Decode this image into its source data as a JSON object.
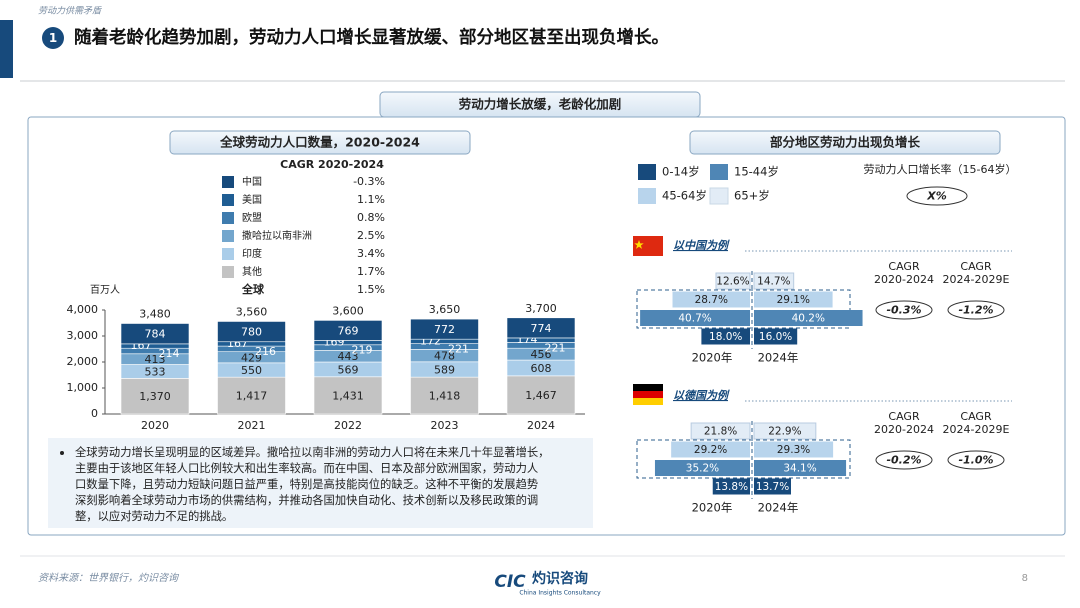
{
  "header": {
    "section": "劳动力供需矛盾",
    "number": "1",
    "title": "随着老龄化趋势加剧，劳动力人口增长显著放缓、部分地区甚至出现负增长。"
  },
  "banner": "劳动力增长放缓，老龄化加剧",
  "chart_data": {
    "type": "bar",
    "stacked": true,
    "title": "全球劳动力人口数量，2020-2024",
    "y_unit": "百万人",
    "categories": [
      "2020",
      "2021",
      "2022",
      "2023",
      "2024"
    ],
    "legend": {
      "title": "CAGR 2020-2024",
      "total_name": "全球",
      "total_cagr": "1.5%"
    },
    "series": [
      {
        "name": "中国",
        "cagr": "-0.3%",
        "color": "#174a7c",
        "values": [
          784,
          780,
          769,
          772,
          774
        ]
      },
      {
        "name": "美国",
        "cagr": "1.1%",
        "color": "#1f5d93",
        "values": [
          167,
          167,
          169,
          172,
          174
        ]
      },
      {
        "name": "欧盟",
        "cagr": "0.8%",
        "color": "#3f7cae",
        "values": [
          214,
          216,
          219,
          221,
          221
        ]
      },
      {
        "name": "撒哈拉以南非洲",
        "cagr": "2.5%",
        "color": "#73a6cd",
        "values": [
          413,
          429,
          443,
          478,
          456
        ]
      },
      {
        "name": "印度",
        "cagr": "3.4%",
        "color": "#aacde9",
        "values": [
          533,
          550,
          569,
          589,
          608
        ]
      },
      {
        "name": "其他",
        "cagr": "1.7%",
        "color": "#c3c3c3",
        "values": [
          1370,
          1417,
          1431,
          1418,
          1467
        ],
        "value_labels": [
          "1,370",
          "1,417",
          "1,431",
          "1,418",
          "1,467"
        ]
      }
    ],
    "totals": {
      "values": [
        3480,
        3560,
        3600,
        3650,
        3700
      ],
      "value_labels": [
        "3,480",
        "3,560",
        "3,600",
        "3,650",
        "3,700"
      ]
    },
    "ylim": [
      0,
      4000
    ],
    "yticks": [
      0,
      {
        "value": 1000,
        "label": "1,000"
      },
      {
        "value": 2000,
        "label": "2,000"
      },
      {
        "value": 3000,
        "label": "3,000"
      },
      {
        "value": 4000,
        "label": "4,000"
      }
    ]
  },
  "notes": {
    "lines": [
      "全球劳动力增长呈现明显的区域差异。撒哈拉以南非洲的劳动力人口将在未来几十年显著增长，",
      "主要由于该地区年轻人口比例较大和出生率较高。而在中国、日本及部分欧洲国家，劳动力人",
      "口数量下降，且劳动力短缺问题日益严重，特别是高技能岗位的缺乏。这种不平衡的发展趋势",
      "深刻影响着全球劳动力市场的供需结构，并推动各国加快自动化、技术创新以及移民政策的调",
      "整，以应对劳动力不足的挑战。"
    ]
  },
  "regions": {
    "title": "部分地区劳动力出现负增长",
    "legend": [
      {
        "name": "0-14岁",
        "color": "#174a7c"
      },
      {
        "name": "15-44岁",
        "color": "#4f86b5"
      },
      {
        "name": "45-64岁",
        "color": "#b8d4ec"
      },
      {
        "name": "65+岁",
        "color": "#e2ecf6"
      }
    ],
    "growth_label": "劳动力人口增长率（15-64岁）",
    "growth_value": "X%",
    "cagr_headers": [
      [
        "CAGR",
        "2020-2024"
      ],
      [
        "CAGR",
        "2024-2029E"
      ]
    ],
    "examples": [
      {
        "name": "以中国为例",
        "years": [
          "2020年",
          "2024年"
        ],
        "cagr": [
          "-0.3%",
          "-1.2%"
        ],
        "bars": [
          {
            "values": [
              12.6,
              14.7
            ],
            "value_labels": [
              "12.6%",
              "14.7%"
            ]
          },
          {
            "values": [
              28.7,
              29.1
            ],
            "value_labels": [
              "28.7%",
              "29.1%"
            ]
          },
          {
            "values": [
              40.7,
              40.2
            ],
            "value_labels": [
              "40.7%",
              "40.2%"
            ]
          },
          {
            "values": [
              18.0,
              16.0
            ],
            "value_labels": [
              "18.0%",
              "16.0%"
            ]
          }
        ]
      },
      {
        "name": "以德国为例",
        "years": [
          "2020年",
          "2024年"
        ],
        "cagr": [
          "-0.2%",
          "-1.0%"
        ],
        "bars": [
          {
            "values": [
              21.8,
              22.9
            ],
            "value_labels": [
              "21.8%",
              "22.9%"
            ]
          },
          {
            "values": [
              29.2,
              29.3
            ],
            "value_labels": [
              "29.2%",
              "29.3%"
            ]
          },
          {
            "values": [
              35.2,
              34.1
            ],
            "value_labels": [
              "35.2%",
              "34.1%"
            ]
          },
          {
            "values": [
              13.8,
              13.7
            ],
            "value_labels": [
              "13.8%",
              "13.7%"
            ]
          }
        ]
      }
    ]
  },
  "footer": {
    "source": "资料来源：世界银行，灼识咨询",
    "logo_mark": "CIC",
    "logo_cn": "灼识咨询",
    "logo_en": "China Insights Consultancy",
    "page": "8"
  }
}
